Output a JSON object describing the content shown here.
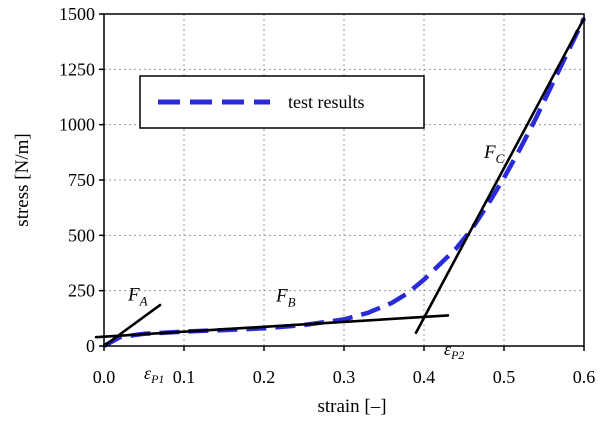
{
  "chart_data": {
    "type": "line",
    "title": "",
    "xlabel": "strain [–]",
    "ylabel": "stress [N/m]",
    "xlim": [
      0,
      0.6
    ],
    "ylim": [
      0,
      1500
    ],
    "x_ticks": [
      "0.0",
      "0.1",
      "0.2",
      "0.3",
      "0.4",
      "0.5",
      "0.6"
    ],
    "y_ticks": [
      "0",
      "250",
      "500",
      "750",
      "1000",
      "1250",
      "1500"
    ],
    "grid": true,
    "legend": {
      "placement": "top-left",
      "entries": [
        "test results"
      ]
    },
    "series": [
      {
        "name": "test results",
        "style": "dashed",
        "color": "#2a2ad8",
        "x": [
          0.0,
          0.02,
          0.05,
          0.1,
          0.15,
          0.2,
          0.25,
          0.3,
          0.33,
          0.36,
          0.38,
          0.4,
          0.42,
          0.44,
          0.46,
          0.48,
          0.5,
          0.52,
          0.54,
          0.56,
          0.58,
          0.6
        ],
        "y": [
          0,
          40,
          55,
          65,
          72,
          80,
          95,
          120,
          150,
          195,
          240,
          300,
          370,
          440,
          530,
          640,
          760,
          890,
          1030,
          1180,
          1330,
          1480
        ]
      }
    ],
    "fits": [
      {
        "x": [
          0.0,
          0.07
        ],
        "y": [
          0,
          185
        ],
        "color": "#000000"
      },
      {
        "x": [
          -0.01,
          0.43
        ],
        "y": [
          40,
          138
        ],
        "color": "#000000"
      },
      {
        "x": [
          0.39,
          0.6
        ],
        "y": [
          60,
          1480
        ],
        "color": "#000000"
      }
    ],
    "annotations": [
      {
        "label": "F",
        "sub": "A",
        "x": 0.03,
        "y": 205
      },
      {
        "label": "F",
        "sub": "B",
        "x": 0.215,
        "y": 200
      },
      {
        "label": "F",
        "sub": "C",
        "x": 0.475,
        "y": 850
      }
    ],
    "strain_markers": [
      {
        "label": "ε",
        "sub": "P1",
        "x": 0.05,
        "y": -150
      },
      {
        "label": "ε",
        "sub": "P2",
        "x": 0.425,
        "y": -40
      }
    ]
  }
}
